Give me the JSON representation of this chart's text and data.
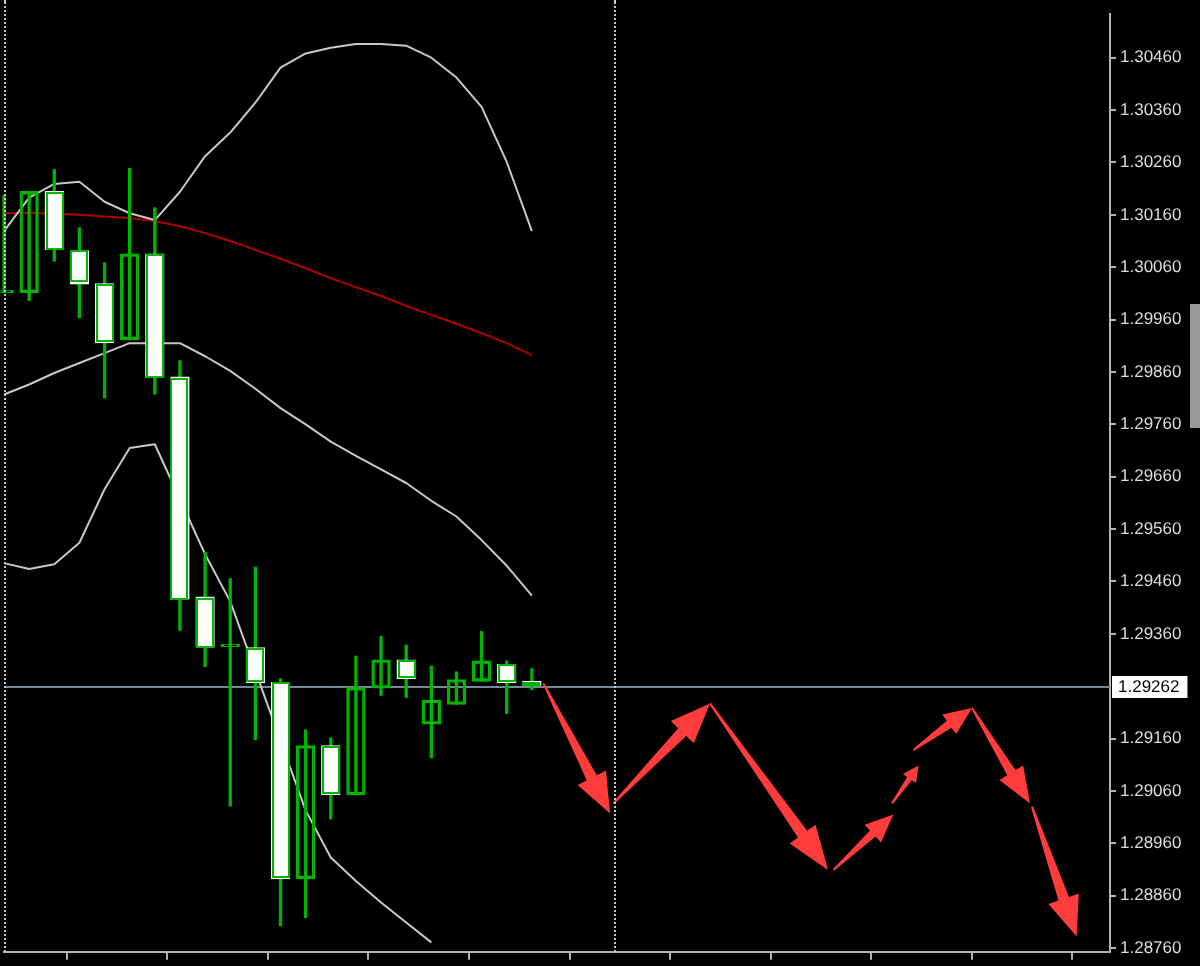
{
  "chart_data": {
    "type": "candlestick",
    "categories": [
      null,
      null,
      null,
      null,
      null,
      null,
      null,
      null,
      null,
      null,
      null,
      null,
      null,
      null,
      null,
      null,
      null,
      null,
      null,
      null,
      null,
      null,
      null,
      null,
      null,
      null,
      null,
      null,
      null,
      null,
      null,
      null,
      null,
      null,
      null,
      null,
      null,
      null,
      null,
      null,
      null,
      null,
      null,
      null,
      null
    ],
    "ohlc": [
      [
        1.30012,
        1.30197,
        1.30012,
        1.30012
      ],
      [
        1.30012,
        1.30204,
        1.29997,
        1.30204
      ],
      [
        1.30204,
        1.30246,
        1.30072,
        1.30094
      ],
      [
        1.30091,
        1.30135,
        1.29964,
        1.30028
      ],
      [
        1.30028,
        1.30068,
        1.29811,
        1.29916
      ],
      [
        1.29922,
        1.30248,
        1.29922,
        1.30085
      ],
      [
        1.30085,
        1.30173,
        1.29818,
        1.2985
      ],
      [
        1.2985,
        1.29881,
        1.29367,
        1.29427
      ],
      [
        1.2943,
        1.29515,
        1.29298,
        1.29336
      ],
      [
        1.29336,
        1.29465,
        1.29032,
        1.29336
      ],
      [
        1.29333,
        1.29487,
        1.29158,
        1.29267
      ],
      [
        1.29267,
        1.29274,
        1.28803,
        1.28893
      ],
      [
        1.28893,
        1.29176,
        1.28819,
        1.29146
      ],
      [
        1.29146,
        1.29161,
        1.29007,
        1.29053
      ],
      [
        1.29053,
        1.29317,
        1.29053,
        1.29257
      ],
      [
        1.29257,
        1.29355,
        1.29243,
        1.2931
      ],
      [
        1.2931,
        1.29338,
        1.29239,
        1.29275
      ],
      [
        1.29188,
        1.29298,
        1.29124,
        1.29233
      ],
      [
        1.29226,
        1.29287,
        1.29226,
        1.29272
      ],
      [
        1.2927,
        1.29364,
        1.2927,
        1.29308
      ],
      [
        1.29301,
        1.29308,
        1.29208,
        1.29267
      ],
      [
        1.29269,
        1.29293,
        1.29254,
        1.29262
      ],
      null,
      null,
      null,
      null,
      null,
      null,
      null,
      null,
      null,
      null,
      null,
      null,
      null,
      null,
      null,
      null,
      null,
      null,
      null,
      null,
      null,
      null,
      null
    ],
    "color": "#00b400",
    "colors": [
      "#00b400",
      "#00b400",
      "#ffffff",
      "#ffffff",
      "#ffffff",
      "#00b400",
      "#ffffff",
      "#ffffff",
      "#ffffff",
      "#00b400",
      "#ffffff",
      "#ffffff",
      "#00b400",
      "#ffffff",
      "#00b400",
      "#00b400",
      "#ffffff",
      "#00b400",
      "#00b400",
      "#00b400",
      "#ffffff",
      "#ffffff",
      null,
      null,
      null,
      null,
      null,
      null,
      null,
      null,
      null,
      null,
      null,
      null,
      null,
      null,
      null,
      null,
      null,
      null,
      null,
      null,
      null,
      null,
      null
    ],
    "series": [
      {
        "type": "line",
        "color": "#c8c8c8",
        "values": [
          1.30129,
          1.30193,
          1.30219,
          1.30223,
          1.30185,
          1.30163,
          1.3015,
          1.30204,
          1.30272,
          1.30317,
          1.30374,
          1.30441,
          1.30468,
          1.30479,
          1.30486,
          1.30486,
          1.30483,
          1.3046,
          1.30422,
          1.30366,
          1.30261,
          1.30129,
          null,
          null,
          null,
          null,
          null,
          null,
          null,
          null,
          null,
          null,
          null,
          null,
          null,
          null,
          null,
          null,
          null,
          null,
          null,
          null,
          null,
          null,
          null
        ]
      },
      {
        "type": "line",
        "color": "#c8c8c8",
        "values": [
          1.29817,
          1.29836,
          1.29858,
          1.29877,
          1.29896,
          1.29915,
          null,
          1.29915,
          1.2989,
          1.29862,
          1.29828,
          1.29791,
          1.2976,
          1.29727,
          1.297,
          1.29674,
          1.29648,
          1.29614,
          1.29584,
          1.29539,
          1.2949,
          1.29433,
          null,
          null,
          null,
          null,
          null,
          null,
          null,
          null,
          null,
          null,
          null,
          null,
          null,
          null,
          null,
          null,
          null,
          null,
          null,
          null,
          null,
          null,
          null
        ]
      },
      {
        "type": "line",
        "color": "#c8c8c8",
        "values": [
          1.29495,
          1.29484,
          1.29493,
          1.29534,
          1.29636,
          1.29715,
          1.29722,
          null,
          1.29512,
          1.29422,
          null,
          null,
          1.29023,
          1.28933,
          1.28888,
          1.28847,
          1.28809,
          1.28771,
          null,
          null,
          null,
          null,
          null,
          null,
          null,
          null,
          null,
          null,
          null,
          null,
          null,
          null,
          null,
          null,
          null,
          null,
          null,
          null,
          null,
          null,
          null,
          null,
          null,
          null,
          null
        ]
      },
      {
        "type": "line",
        "color": "#b00000",
        "values": [
          1.30163,
          1.30164,
          null,
          1.3016,
          1.30157,
          1.30154,
          1.30148,
          1.30138,
          1.30125,
          1.3011,
          1.30093,
          1.30076,
          1.30058,
          1.30039,
          1.30022,
          1.30005,
          1.29986,
          1.29969,
          1.29952,
          1.29934,
          1.29915,
          1.29892,
          null,
          null,
          null,
          null,
          null,
          null,
          null,
          null,
          null,
          null,
          null,
          null,
          null,
          null,
          null,
          null,
          null,
          null,
          null,
          null,
          null,
          null,
          null
        ]
      }
    ],
    "ylim": [
      1.28753,
      1.30543
    ],
    "yticks": [
      {
        "value": 1.3046,
        "label": "1.30460"
      },
      {
        "value": 1.3036,
        "label": "1.30360"
      },
      {
        "value": 1.3026,
        "label": "1.30260"
      },
      {
        "value": 1.3016,
        "label": "1.30160"
      },
      {
        "value": 1.3006,
        "label": "1.30060"
      },
      {
        "value": 1.2996,
        "label": "1.29960"
      },
      {
        "value": 1.2986,
        "label": "1.29860"
      },
      {
        "value": 1.2976,
        "label": "1.29760"
      },
      {
        "value": 1.2966,
        "label": "1.29660"
      },
      {
        "value": 1.2956,
        "label": "1.29560"
      },
      {
        "value": 1.2946,
        "label": "1.29460"
      },
      {
        "value": 1.2936,
        "label": "1.29360"
      },
      {
        "value": 1.2916,
        "label": "1.29160"
      },
      {
        "value": 1.2906,
        "label": "1.29060"
      },
      {
        "value": 1.2896,
        "label": "1.28960"
      },
      {
        "value": 1.2886,
        "label": "1.28860"
      },
      {
        "value": 1.2876,
        "label": "1.28760"
      }
    ],
    "ref_lines": [
      {
        "axis": "y",
        "value": 1.29262,
        "label": "1.29262",
        "color": "#778899"
      }
    ],
    "tick_labels": "y"
  }
}
